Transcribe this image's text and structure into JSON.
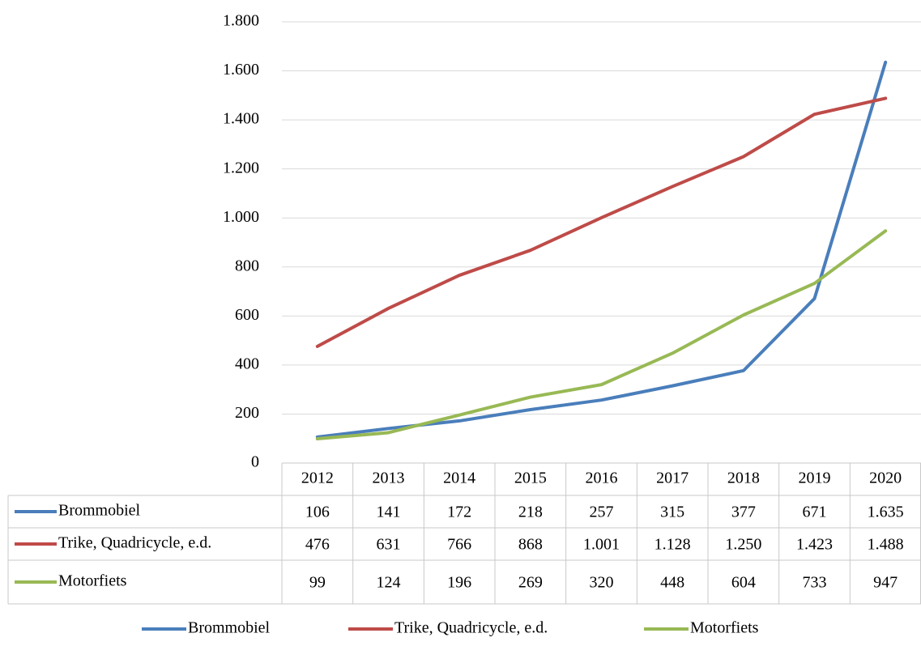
{
  "chart_data": {
    "type": "line",
    "categories": [
      "2012",
      "2013",
      "2014",
      "2015",
      "2016",
      "2017",
      "2018",
      "2019",
      "2020"
    ],
    "series": [
      {
        "name": "Brommobiel",
        "color": "#4a7ebb",
        "values": [
          106,
          141,
          172,
          218,
          257,
          315,
          377,
          671,
          1635
        ],
        "value_labels": [
          "106",
          "141",
          "172",
          "218",
          "257",
          "315",
          "377",
          "671",
          "1.635"
        ]
      },
      {
        "name": "Trike, Quadricycle, e.d.",
        "color": "#be4b48",
        "values": [
          476,
          631,
          766,
          868,
          1001,
          1128,
          1250,
          1423,
          1488
        ],
        "value_labels": [
          "476",
          "631",
          "766",
          "868",
          "1.001",
          "1.128",
          "1.250",
          "1.423",
          "1.488"
        ]
      },
      {
        "name": "Motorfiets",
        "color": "#98b954",
        "values": [
          99,
          124,
          196,
          269,
          320,
          448,
          604,
          733,
          947
        ],
        "value_labels": [
          "99",
          "124",
          "196",
          "269",
          "320",
          "448",
          "604",
          "733",
          "947"
        ]
      }
    ],
    "ylim": [
      0,
      1800
    ],
    "yticks": [
      0,
      200,
      400,
      600,
      800,
      {
        "value": 1000,
        "label": "1.000"
      },
      {
        "value": 1200,
        "label": "1.200"
      },
      {
        "value": 1400,
        "label": "1.400"
      },
      {
        "value": 1600,
        "label": "1.600"
      },
      {
        "value": 1800,
        "label": "1.800"
      }
    ],
    "grid": true,
    "legend": "bottom"
  }
}
